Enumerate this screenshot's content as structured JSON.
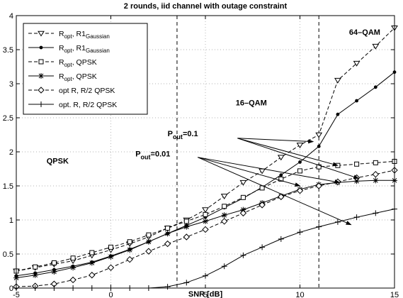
{
  "chart_data": {
    "type": "line",
    "title": "2 rounds, iid channel with outage constraint",
    "xlabel": "SNR [dB]",
    "ylabel": "",
    "xlim": [
      -5,
      15
    ],
    "ylim": [
      0,
      4
    ],
    "xticks": [
      -5,
      0,
      5,
      10,
      15
    ],
    "yticks": [
      0,
      0.5,
      1,
      1.5,
      2,
      2.5,
      3,
      3.5,
      4
    ],
    "grid": true,
    "legend_position": "top-left",
    "vlines": [
      3.5,
      11
    ],
    "x": [
      -5,
      -4,
      -3,
      -2,
      -1,
      0,
      1,
      2,
      3,
      4,
      5,
      6,
      7,
      8,
      9,
      10,
      11,
      12,
      13,
      14,
      15
    ],
    "series": [
      {
        "name": "R_opt, R1_Gaussian",
        "legend_main": "R",
        "legend_sub": "opt",
        "legend_mid": ", R1",
        "legend_sub2": "Gaussian",
        "style": "dashed",
        "marker": "triangle-down",
        "values": [
          0.25,
          0.3,
          0.35,
          0.4,
          0.48,
          0.56,
          0.65,
          0.75,
          0.88,
          1.0,
          1.15,
          1.35,
          1.55,
          1.72,
          1.92,
          2.1,
          2.25,
          3.05,
          3.3,
          3.55,
          3.82
        ]
      },
      {
        "name": "R_opt, R1_Gaussian (solid)",
        "legend_main": "R",
        "legend_sub": "opt",
        "legend_mid": ", R1",
        "legend_sub2": "Gaussian",
        "style": "solid",
        "marker": "dot",
        "values": [
          0.18,
          0.22,
          0.27,
          0.32,
          0.38,
          0.47,
          0.57,
          0.68,
          0.8,
          0.92,
          1.04,
          1.18,
          1.32,
          1.48,
          1.66,
          1.85,
          2.08,
          2.55,
          2.75,
          2.95,
          3.17
        ]
      },
      {
        "name": "R_opt, QPSK",
        "legend_main": "R",
        "legend_sub": "opt",
        "legend_mid": ", QPSK",
        "legend_sub2": "",
        "style": "dashed",
        "marker": "square",
        "values": [
          0.25,
          0.31,
          0.37,
          0.44,
          0.52,
          0.6,
          0.68,
          0.78,
          0.88,
          0.98,
          1.08,
          1.2,
          1.33,
          1.47,
          1.6,
          1.72,
          1.78,
          1.8,
          1.82,
          1.84,
          1.86
        ]
      },
      {
        "name": "R_opt, QPSK (solid)",
        "legend_main": "R",
        "legend_sub": "opt",
        "legend_mid": ", QPSK",
        "legend_sub2": "",
        "style": "solid",
        "marker": "star",
        "values": [
          0.15,
          0.19,
          0.24,
          0.3,
          0.37,
          0.46,
          0.56,
          0.68,
          0.8,
          0.9,
          0.98,
          1.07,
          1.15,
          1.25,
          1.35,
          1.45,
          1.52,
          1.55,
          1.57,
          1.58,
          1.58
        ]
      },
      {
        "name": "opt R, R/2 QPSK",
        "legend_main": "opt R, R/2 QPSK",
        "legend_sub": "",
        "legend_mid": "",
        "legend_sub2": "",
        "style": "dashed",
        "marker": "diamond",
        "values": [
          0.02,
          0.03,
          0.06,
          0.12,
          0.19,
          0.3,
          0.42,
          0.54,
          0.65,
          0.75,
          0.86,
          0.98,
          1.1,
          1.22,
          1.34,
          1.43,
          1.5,
          1.56,
          1.62,
          1.67,
          1.73
        ]
      },
      {
        "name": "opt. R, R/2 QPSK",
        "legend_main": "opt. R, R/2 QPSK",
        "legend_sub": "",
        "legend_mid": "",
        "legend_sub2": "",
        "style": "solid",
        "marker": "plus",
        "values": [
          0.0,
          0.0,
          0.0,
          0.0,
          0.0,
          0.0,
          0.0,
          0.0,
          0.02,
          0.08,
          0.18,
          0.32,
          0.48,
          0.6,
          0.72,
          0.82,
          0.9,
          0.97,
          1.04,
          1.1,
          1.16
        ]
      }
    ],
    "annotations": [
      {
        "text": "64–QAM",
        "x": 12.6,
        "y": 3.72
      },
      {
        "text": "16–QAM",
        "x": 6.6,
        "y": 2.68
      },
      {
        "text": "QPSK",
        "x": -3.4,
        "y": 1.83
      },
      {
        "text": "P",
        "sub": "out",
        "rest": "=0.1",
        "x": 3.0,
        "y": 2.23
      },
      {
        "text": "P",
        "sub": "out",
        "rest": "=0.01",
        "x": 1.3,
        "y": 1.93
      }
    ],
    "arrows": [
      {
        "from": [
          6.7,
          2.2
        ],
        "to": [
          10.7,
          2.15
        ]
      },
      {
        "from": [
          6.7,
          2.2
        ],
        "to": [
          12.0,
          1.8
        ]
      },
      {
        "from": [
          6.7,
          2.2
        ],
        "to": [
          13.1,
          1.61
        ]
      },
      {
        "from": [
          4.6,
          1.92
        ],
        "to": [
          10.0,
          1.5
        ]
      },
      {
        "from": [
          4.6,
          1.92
        ],
        "to": [
          12.1,
          1.55
        ]
      },
      {
        "from": [
          4.6,
          1.92
        ],
        "to": [
          12.7,
          0.93
        ]
      }
    ]
  }
}
